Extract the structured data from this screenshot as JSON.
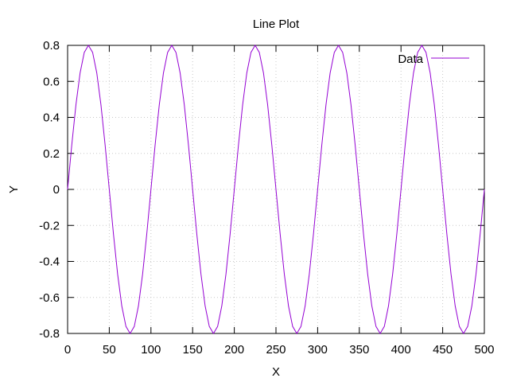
{
  "chart_data": {
    "type": "line",
    "title": "Line Plot",
    "xlabel": "X",
    "ylabel": "Y",
    "xlim": [
      0,
      500
    ],
    "ylim": [
      -0.8,
      0.8
    ],
    "xticks": [
      0,
      50,
      100,
      150,
      200,
      250,
      300,
      350,
      400,
      450,
      500
    ],
    "yticks": [
      0.8,
      0.6,
      0.4,
      0.2,
      0,
      -0.2,
      -0.4,
      -0.6,
      -0.8
    ],
    "xtick_labels": [
      "0",
      "50",
      "100",
      "150",
      "200",
      "250",
      "300",
      "350",
      "400",
      "450",
      "500"
    ],
    "ytick_labels": [
      "0.8",
      "0.6",
      "0.4",
      "0.2",
      "0",
      "-0.2",
      "-0.4",
      "-0.6",
      "-0.8"
    ],
    "grid": true,
    "legend_position": "top-right",
    "series": [
      {
        "name": "Data",
        "color": "#9400d3",
        "x": [
          0,
          5,
          10,
          15,
          20,
          25,
          30,
          35,
          40,
          45,
          50,
          55,
          60,
          65,
          70,
          75,
          80,
          85,
          90,
          95,
          100,
          105,
          110,
          115,
          120,
          125,
          130,
          135,
          140,
          145,
          150,
          155,
          160,
          165,
          170,
          175,
          180,
          185,
          190,
          195,
          200,
          205,
          210,
          215,
          220,
          225,
          230,
          235,
          240,
          245,
          250,
          255,
          260,
          265,
          270,
          275,
          280,
          285,
          290,
          295,
          300,
          305,
          310,
          315,
          320,
          325,
          330,
          335,
          340,
          345,
          350,
          355,
          360,
          365,
          370,
          375,
          380,
          385,
          390,
          395,
          400,
          405,
          410,
          415,
          420,
          425,
          430,
          435,
          440,
          445,
          450,
          455,
          460,
          465,
          470,
          475,
          480,
          485,
          490,
          495,
          500
        ],
        "y": [
          0,
          0.247,
          0.47,
          0.647,
          0.761,
          0.8,
          0.761,
          0.647,
          0.47,
          0.247,
          0,
          -0.247,
          -0.47,
          -0.647,
          -0.761,
          -0.8,
          -0.761,
          -0.647,
          -0.47,
          -0.247,
          0,
          0.247,
          0.47,
          0.647,
          0.761,
          0.8,
          0.761,
          0.647,
          0.47,
          0.247,
          0,
          -0.247,
          -0.47,
          -0.647,
          -0.761,
          -0.8,
          -0.761,
          -0.647,
          -0.47,
          -0.247,
          0,
          0.247,
          0.47,
          0.647,
          0.761,
          0.8,
          0.761,
          0.647,
          0.47,
          0.247,
          0,
          -0.247,
          -0.47,
          -0.647,
          -0.761,
          -0.8,
          -0.761,
          -0.647,
          -0.47,
          -0.247,
          0,
          0.247,
          0.47,
          0.647,
          0.761,
          0.8,
          0.761,
          0.647,
          0.47,
          0.247,
          0,
          -0.247,
          -0.47,
          -0.647,
          -0.761,
          -0.8,
          -0.761,
          -0.647,
          -0.47,
          -0.247,
          0,
          0.247,
          0.47,
          0.647,
          0.761,
          0.8,
          0.761,
          0.647,
          0.47,
          0.247,
          0,
          -0.247,
          -0.47,
          -0.647,
          -0.761,
          -0.8,
          -0.761,
          -0.647,
          -0.47,
          -0.247,
          0
        ]
      }
    ]
  }
}
